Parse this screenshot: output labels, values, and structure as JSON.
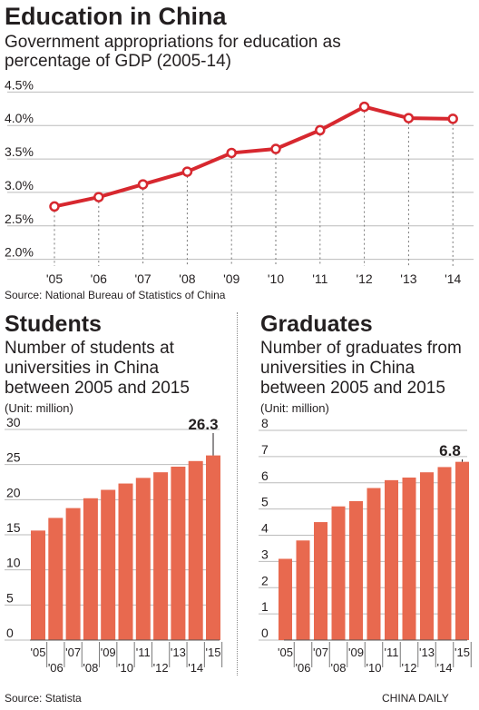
{
  "title": "Education in China",
  "subtitle": "Government appropriations for education as percentage of GDP (2005-14)",
  "source_top": "Source: National Bureau of Statistics of China",
  "students": {
    "heading": "Students",
    "subtitle": "Number of students at universities in China between 2005 and 2015",
    "unit": "(Unit: million)",
    "callout": "26.3"
  },
  "graduates": {
    "heading": "Graduates",
    "subtitle": "Number of graduates from universities in China between 2005 and 2015",
    "unit": "(Unit: million)",
    "callout": "6.8"
  },
  "source_bottom": "Source: Statista",
  "credit": "CHINA DAILY",
  "colors": {
    "line": "#d7282f",
    "bar": "#e8694f",
    "grid": "#bbbbbb"
  },
  "chart_data": [
    {
      "type": "line",
      "title": "Government appropriations for education as percentage of GDP (2005-14)",
      "x": [
        "'05",
        "'06",
        "'07",
        "'08",
        "'09",
        "'10",
        "'11",
        "'12",
        "'13",
        "'14"
      ],
      "values": [
        2.79,
        2.93,
        3.12,
        3.31,
        3.59,
        3.65,
        3.93,
        4.28,
        4.11,
        4.1
      ],
      "yticks": [
        "2.0%",
        "2.5%",
        "3.0%",
        "3.5%",
        "4.0%",
        "4.5%"
      ],
      "ylim": [
        1.9,
        4.6
      ],
      "grid": true
    },
    {
      "type": "bar",
      "title": "Students",
      "categories": [
        "'05",
        "'06",
        "'07",
        "'08",
        "'09",
        "'10",
        "'11",
        "'12",
        "'13",
        "'14",
        "'15"
      ],
      "values": [
        15.6,
        17.4,
        18.8,
        20.2,
        21.4,
        22.3,
        23.1,
        23.9,
        24.7,
        25.5,
        26.3
      ],
      "yticks": [
        "0",
        "5",
        "10",
        "15",
        "20",
        "25",
        "30"
      ],
      "ylim": [
        0,
        30
      ]
    },
    {
      "type": "bar",
      "title": "Graduates",
      "categories": [
        "'05",
        "'06",
        "'07",
        "'08",
        "'09",
        "'10",
        "'11",
        "'12",
        "'13",
        "'14",
        "'15"
      ],
      "values": [
        3.1,
        3.8,
        4.5,
        5.1,
        5.3,
        5.8,
        6.1,
        6.2,
        6.4,
        6.6,
        6.8
      ],
      "yticks": [
        "0",
        "1",
        "2",
        "3",
        "4",
        "5",
        "6",
        "7",
        "8"
      ],
      "ylim": [
        0,
        8
      ]
    }
  ]
}
